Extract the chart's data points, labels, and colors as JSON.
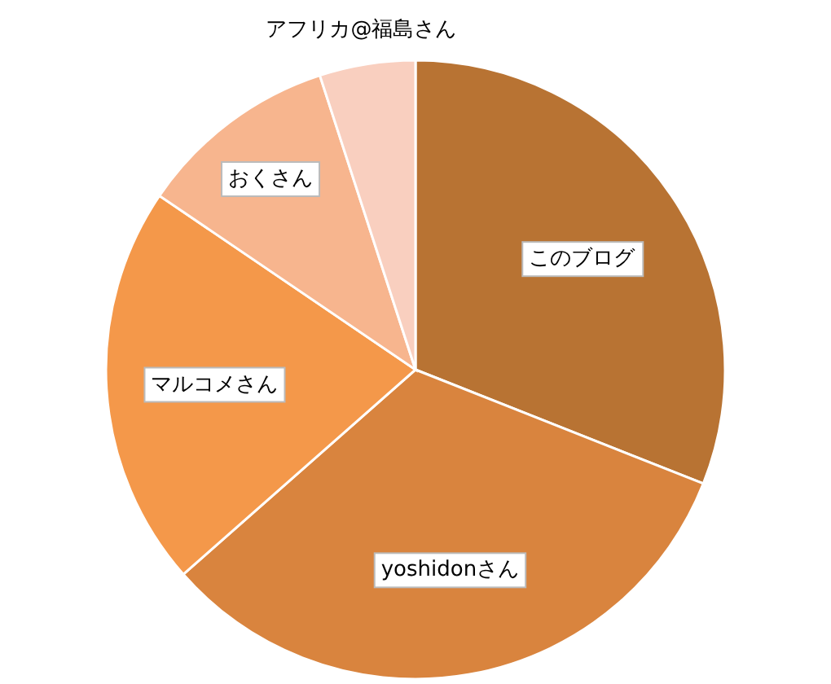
{
  "chart_data": {
    "type": "pie",
    "categories": [
      "このブログ",
      "yoshidonさん",
      "マルコメさん",
      "おくさん",
      "アフリカ@福島さん"
    ],
    "values": [
      31,
      32.5,
      21,
      10.5,
      5
    ],
    "colors": [
      "#b87333",
      "#d9843e",
      "#f4984a",
      "#f7b58e",
      "#f9cfbf"
    ]
  }
}
